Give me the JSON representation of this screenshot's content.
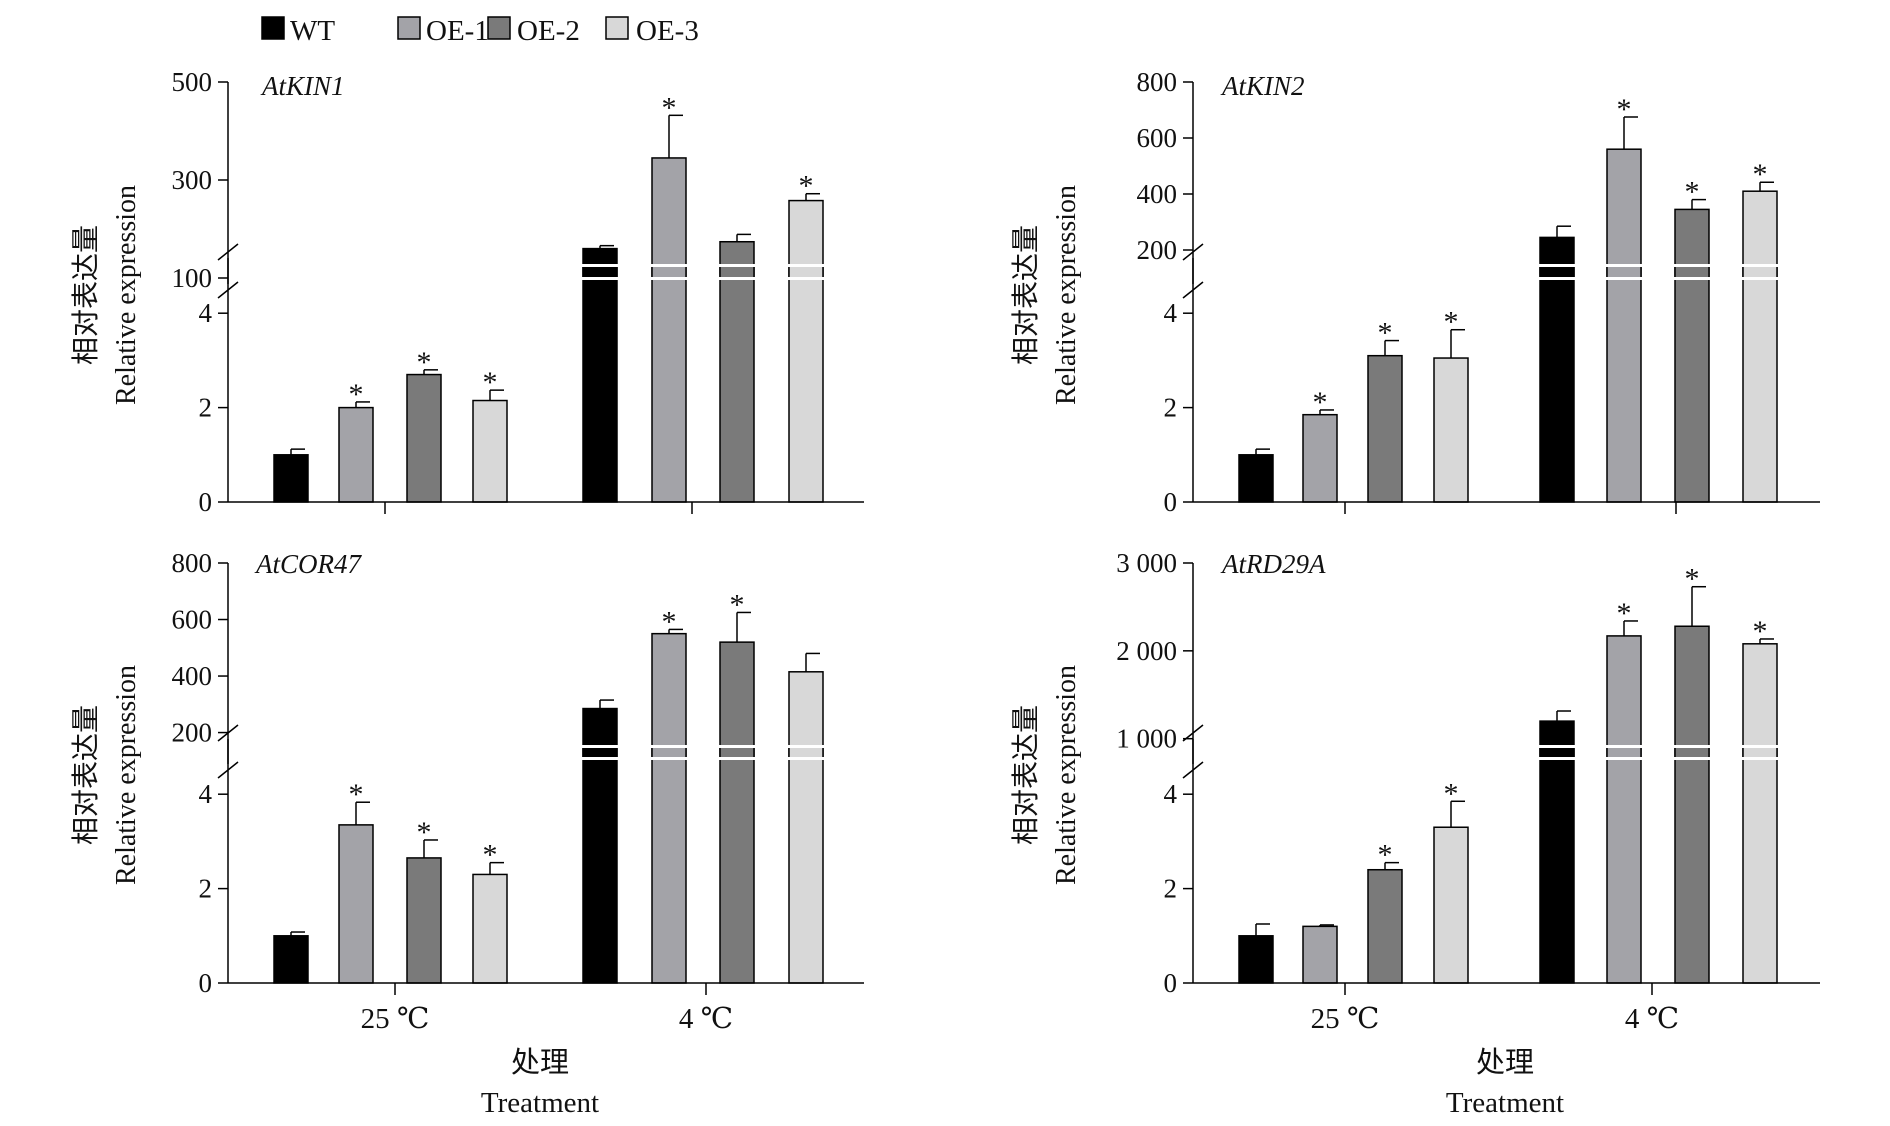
{
  "legend": [
    {
      "label": "WT",
      "color": "#000000"
    },
    {
      "label": "OE-1",
      "color": "#a3a3a8"
    },
    {
      "label": "OE-2",
      "color": "#7a7a7a"
    },
    {
      "label": "OE-3",
      "color": "#d8d8d8"
    }
  ],
  "axis_text": {
    "ylabel_cn": "相对表达量",
    "ylabel_en": "Relative expression",
    "xlabel_cn": "处理",
    "xlabel_en": "Treatment",
    "group_25": "25 ℃",
    "group_4": "4 ℃"
  },
  "chart_data": [
    {
      "type": "bar",
      "gene": "AtKIN1",
      "categories": [
        "25 ℃",
        "4 ℃"
      ],
      "series": [
        {
          "name": "WT",
          "values": [
            1.0,
            160
          ],
          "errors": [
            0.12,
            6
          ]
        },
        {
          "name": "OE-1",
          "values": [
            2.0,
            345
          ],
          "errors": [
            0.12,
            87
          ]
        },
        {
          "name": "OE-2",
          "values": [
            2.7,
            174
          ],
          "errors": [
            0.1,
            15
          ]
        },
        {
          "name": "OE-3",
          "values": [
            2.15,
            258
          ],
          "errors": [
            0.22,
            14
          ]
        }
      ],
      "significant": [
        [
          false,
          false
        ],
        [
          true,
          true
        ],
        [
          true,
          false
        ],
        [
          true,
          true
        ]
      ],
      "axis_break": {
        "lower_range": [
          0,
          5
        ],
        "upper_range": [
          100,
          500
        ]
      },
      "lower_ticks": [
        0,
        2,
        4
      ],
      "upper_ticks": [
        100,
        300,
        500
      ],
      "tick_labels_lower": [
        "0",
        "2",
        "4"
      ],
      "tick_labels_upper": [
        "100",
        "300",
        "500"
      ]
    },
    {
      "type": "bar",
      "gene": "AtKIN2",
      "categories": [
        "25 ℃",
        "4 ℃"
      ],
      "series": [
        {
          "name": "WT",
          "values": [
            1.0,
            245
          ],
          "errors": [
            0.12,
            40
          ]
        },
        {
          "name": "OE-1",
          "values": [
            1.85,
            560
          ],
          "errors": [
            0.1,
            115
          ]
        },
        {
          "name": "OE-2",
          "values": [
            3.1,
            345
          ],
          "errors": [
            0.32,
            35
          ]
        },
        {
          "name": "OE-3",
          "values": [
            3.05,
            410
          ],
          "errors": [
            0.6,
            32
          ]
        }
      ],
      "significant": [
        [
          false,
          false
        ],
        [
          true,
          true
        ],
        [
          true,
          true
        ],
        [
          true,
          true
        ]
      ],
      "axis_break": {
        "lower_range": [
          0,
          5
        ],
        "upper_range": [
          100,
          800
        ]
      },
      "lower_ticks": [
        0,
        2,
        4
      ],
      "upper_ticks": [
        200,
        400,
        600,
        800
      ],
      "tick_labels_lower": [
        "0",
        "2",
        "4"
      ],
      "tick_labels_upper": [
        "200",
        "400",
        "600",
        "800"
      ]
    },
    {
      "type": "bar",
      "gene": "AtCOR47",
      "categories": [
        "25 ℃",
        "4 ℃"
      ],
      "series": [
        {
          "name": "WT",
          "values": [
            1.0,
            285
          ],
          "errors": [
            0.08,
            30
          ]
        },
        {
          "name": "OE-1",
          "values": [
            3.35,
            550
          ],
          "errors": [
            0.48,
            15
          ]
        },
        {
          "name": "OE-2",
          "values": [
            2.65,
            520
          ],
          "errors": [
            0.38,
            105
          ]
        },
        {
          "name": "OE-3",
          "values": [
            2.3,
            415
          ],
          "errors": [
            0.25,
            65
          ]
        }
      ],
      "significant": [
        [
          false,
          false
        ],
        [
          true,
          true
        ],
        [
          true,
          true
        ],
        [
          true,
          false
        ]
      ],
      "axis_break": {
        "lower_range": [
          0,
          5
        ],
        "upper_range": [
          110,
          800
        ]
      },
      "lower_ticks": [
        0,
        2,
        4
      ],
      "upper_ticks": [
        200,
        400,
        600,
        800
      ],
      "tick_labels_lower": [
        "0",
        "2",
        "4"
      ],
      "tick_labels_upper": [
        "200",
        "400",
        "600",
        "800"
      ]
    },
    {
      "type": "bar",
      "gene": "AtRD29A",
      "categories": [
        "25 ℃",
        "4 ℃"
      ],
      "series": [
        {
          "name": "WT",
          "values": [
            1.0,
            1200
          ],
          "errors": [
            0.25,
            115
          ]
        },
        {
          "name": "OE-1",
          "values": [
            1.2,
            2170
          ],
          "errors": [
            0.03,
            170
          ]
        },
        {
          "name": "OE-2",
          "values": [
            2.4,
            2280
          ],
          "errors": [
            0.15,
            450
          ]
        },
        {
          "name": "OE-3",
          "values": [
            3.3,
            2080
          ],
          "errors": [
            0.55,
            55
          ]
        }
      ],
      "significant": [
        [
          false,
          false
        ],
        [
          false,
          true
        ],
        [
          true,
          true
        ],
        [
          true,
          true
        ]
      ],
      "axis_break": {
        "lower_range": [
          0,
          5
        ],
        "upper_range": [
          780,
          3000
        ]
      },
      "lower_ticks": [
        0,
        2,
        4
      ],
      "upper_ticks": [
        1000,
        2000,
        3000
      ],
      "tick_labels_lower": [
        "0",
        "2",
        "4"
      ],
      "tick_labels_upper": [
        "1 000",
        "2 000",
        "3 000"
      ]
    }
  ]
}
